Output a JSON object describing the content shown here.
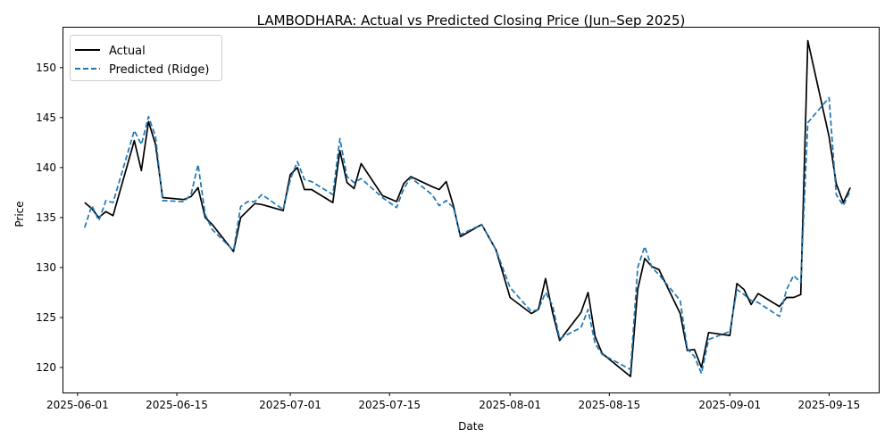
{
  "chart_data": {
    "type": "line",
    "title": "LAMBODHARA: Actual vs Predicted Closing Price (Jun–Sep 2025)",
    "xlabel": "Date",
    "ylabel": "Price",
    "x_ticks": [
      "2025-06-01",
      "2025-06-15",
      "2025-07-01",
      "2025-07-15",
      "2025-08-01",
      "2025-08-15",
      "2025-09-01",
      "2025-09-15"
    ],
    "y_ticks": [
      120,
      125,
      130,
      135,
      140,
      145,
      150
    ],
    "xlim": [
      "2025-05-30",
      "2025-09-22"
    ],
    "ylim": [
      117.5,
      154.0
    ],
    "grid": false,
    "legend_position": "upper-left",
    "series": [
      {
        "name": "Actual",
        "color": "#000000",
        "style": "solid",
        "points": [
          [
            "2025-06-02",
            136.5
          ],
          [
            "2025-06-03",
            135.9
          ],
          [
            "2025-06-04",
            135.0
          ],
          [
            "2025-06-05",
            135.6
          ],
          [
            "2025-06-06",
            135.2
          ],
          [
            "2025-06-09",
            142.7
          ],
          [
            "2025-06-10",
            139.7
          ],
          [
            "2025-06-11",
            144.6
          ],
          [
            "2025-06-12",
            142.3
          ],
          [
            "2025-06-13",
            137.0
          ],
          [
            "2025-06-16",
            136.8
          ],
          [
            "2025-06-17",
            137.1
          ],
          [
            "2025-06-18",
            138.0
          ],
          [
            "2025-06-19",
            135.0
          ],
          [
            "2025-06-20",
            134.3
          ],
          [
            "2025-06-23",
            131.6
          ],
          [
            "2025-06-24",
            135.0
          ],
          [
            "2025-06-26",
            136.4
          ],
          [
            "2025-06-27",
            136.3
          ],
          [
            "2025-06-30",
            135.7
          ],
          [
            "2025-07-01",
            139.3
          ],
          [
            "2025-07-02",
            140.0
          ],
          [
            "2025-07-03",
            137.8
          ],
          [
            "2025-07-04",
            137.8
          ],
          [
            "2025-07-07",
            136.5
          ],
          [
            "2025-07-08",
            141.7
          ],
          [
            "2025-07-09",
            138.5
          ],
          [
            "2025-07-10",
            137.9
          ],
          [
            "2025-07-11",
            140.4
          ],
          [
            "2025-07-14",
            137.2
          ],
          [
            "2025-07-16",
            136.6
          ],
          [
            "2025-07-17",
            138.4
          ],
          [
            "2025-07-18",
            139.1
          ],
          [
            "2025-07-21",
            138.1
          ],
          [
            "2025-07-22",
            137.8
          ],
          [
            "2025-07-23",
            138.6
          ],
          [
            "2025-07-24",
            136.2
          ],
          [
            "2025-07-25",
            133.1
          ],
          [
            "2025-07-28",
            134.3
          ],
          [
            "2025-07-30",
            131.8
          ],
          [
            "2025-08-01",
            127.0
          ],
          [
            "2025-08-04",
            125.4
          ],
          [
            "2025-08-05",
            125.8
          ],
          [
            "2025-08-06",
            128.9
          ],
          [
            "2025-08-07",
            125.5
          ],
          [
            "2025-08-08",
            122.7
          ],
          [
            "2025-08-11",
            125.5
          ],
          [
            "2025-08-12",
            127.5
          ],
          [
            "2025-08-13",
            123.1
          ],
          [
            "2025-08-14",
            121.4
          ],
          [
            "2025-08-18",
            119.1
          ],
          [
            "2025-08-19",
            127.8
          ],
          [
            "2025-08-20",
            130.9
          ],
          [
            "2025-08-21",
            130.1
          ],
          [
            "2025-08-22",
            129.8
          ],
          [
            "2025-08-25",
            125.4
          ],
          [
            "2025-08-26",
            121.7
          ],
          [
            "2025-08-27",
            121.8
          ],
          [
            "2025-08-28",
            120.0
          ],
          [
            "2025-08-29",
            123.5
          ],
          [
            "2025-09-01",
            123.2
          ],
          [
            "2025-09-02",
            128.4
          ],
          [
            "2025-09-03",
            127.8
          ],
          [
            "2025-09-04",
            126.3
          ],
          [
            "2025-09-05",
            127.4
          ],
          [
            "2025-09-08",
            126.1
          ],
          [
            "2025-09-09",
            127.0
          ],
          [
            "2025-09-10",
            127.0
          ],
          [
            "2025-09-11",
            127.3
          ],
          [
            "2025-09-12",
            152.7
          ],
          [
            "2025-09-15",
            143.1
          ],
          [
            "2025-09-16",
            138.4
          ],
          [
            "2025-09-17",
            136.5
          ],
          [
            "2025-09-18",
            138.0
          ]
        ]
      },
      {
        "name": "Predicted (Ridge)",
        "color": "#1f77b4",
        "style": "dashed",
        "points": [
          [
            "2025-06-02",
            134.0
          ],
          [
            "2025-06-03",
            136.2
          ],
          [
            "2025-06-04",
            134.7
          ],
          [
            "2025-06-05",
            136.7
          ],
          [
            "2025-06-06",
            136.5
          ],
          [
            "2025-06-09",
            143.7
          ],
          [
            "2025-06-10",
            142.3
          ],
          [
            "2025-06-11",
            145.1
          ],
          [
            "2025-06-12",
            143.1
          ],
          [
            "2025-06-13",
            136.7
          ],
          [
            "2025-06-16",
            136.6
          ],
          [
            "2025-06-17",
            137.3
          ],
          [
            "2025-06-18",
            140.3
          ],
          [
            "2025-06-19",
            135.3
          ],
          [
            "2025-06-20",
            133.8
          ],
          [
            "2025-06-23",
            131.7
          ],
          [
            "2025-06-24",
            136.1
          ],
          [
            "2025-06-25",
            136.6
          ],
          [
            "2025-06-26",
            136.6
          ],
          [
            "2025-06-27",
            137.3
          ],
          [
            "2025-06-30",
            135.8
          ],
          [
            "2025-07-01",
            138.8
          ],
          [
            "2025-07-02",
            140.6
          ],
          [
            "2025-07-03",
            138.8
          ],
          [
            "2025-07-04",
            138.6
          ],
          [
            "2025-07-07",
            137.3
          ],
          [
            "2025-07-08",
            142.9
          ],
          [
            "2025-07-09",
            139.1
          ],
          [
            "2025-07-10",
            138.5
          ],
          [
            "2025-07-11",
            138.9
          ],
          [
            "2025-07-14",
            137.0
          ],
          [
            "2025-07-16",
            136.0
          ],
          [
            "2025-07-17",
            137.9
          ],
          [
            "2025-07-18",
            139.0
          ],
          [
            "2025-07-21",
            137.3
          ],
          [
            "2025-07-22",
            136.2
          ],
          [
            "2025-07-23",
            136.7
          ],
          [
            "2025-07-24",
            136.0
          ],
          [
            "2025-07-25",
            133.3
          ],
          [
            "2025-07-28",
            134.3
          ],
          [
            "2025-07-30",
            131.8
          ],
          [
            "2025-08-01",
            128.0
          ],
          [
            "2025-08-04",
            125.6
          ],
          [
            "2025-08-05",
            125.8
          ],
          [
            "2025-08-06",
            127.5
          ],
          [
            "2025-08-07",
            126.2
          ],
          [
            "2025-08-08",
            122.9
          ],
          [
            "2025-08-11",
            124.0
          ],
          [
            "2025-08-12",
            125.8
          ],
          [
            "2025-08-13",
            122.4
          ],
          [
            "2025-08-14",
            121.3
          ],
          [
            "2025-08-18",
            119.8
          ],
          [
            "2025-08-19",
            130.0
          ],
          [
            "2025-08-20",
            132.1
          ],
          [
            "2025-08-21",
            130.0
          ],
          [
            "2025-08-22",
            129.3
          ],
          [
            "2025-08-25",
            126.7
          ],
          [
            "2025-08-26",
            121.9
          ],
          [
            "2025-08-27",
            121.1
          ],
          [
            "2025-08-28",
            119.4
          ],
          [
            "2025-08-29",
            122.8
          ],
          [
            "2025-09-01",
            123.6
          ],
          [
            "2025-09-02",
            127.8
          ],
          [
            "2025-09-03",
            127.3
          ],
          [
            "2025-09-04",
            126.7
          ],
          [
            "2025-09-05",
            126.5
          ],
          [
            "2025-09-08",
            125.1
          ],
          [
            "2025-09-09",
            127.8
          ],
          [
            "2025-09-10",
            129.2
          ],
          [
            "2025-09-11",
            128.5
          ],
          [
            "2025-09-12",
            144.5
          ],
          [
            "2025-09-15",
            147.0
          ],
          [
            "2025-09-16",
            137.3
          ],
          [
            "2025-09-17",
            136.2
          ],
          [
            "2025-09-18",
            137.7
          ]
        ]
      }
    ]
  }
}
